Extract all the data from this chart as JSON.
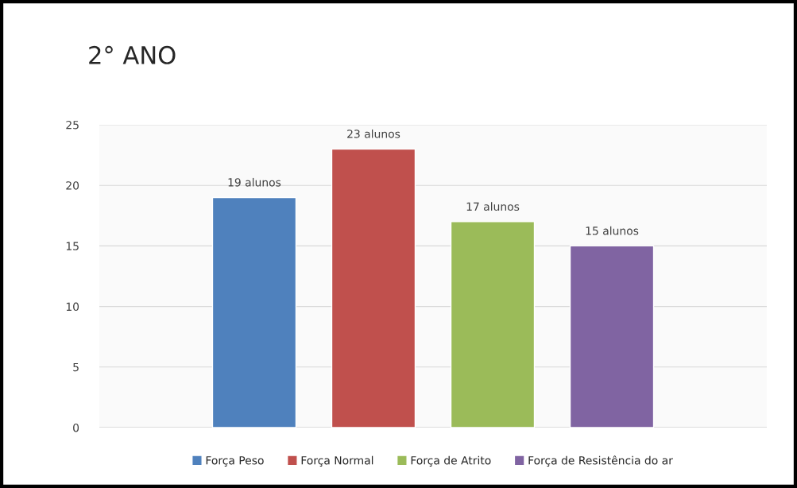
{
  "chart_data": {
    "type": "bar",
    "title": "2° ANO",
    "categories": [
      null
    ],
    "series": [
      {
        "name": "Força Peso",
        "color": "#4f81bd",
        "values": [
          19
        ],
        "value_labels": [
          "19 alunos"
        ]
      },
      {
        "name": "Força Normal",
        "color": "#c0504d",
        "values": [
          23
        ],
        "value_labels": [
          "23 alunos"
        ]
      },
      {
        "name": "Força de Atrito",
        "color": "#9bbb59",
        "values": [
          17
        ],
        "value_labels": [
          "17 alunos"
        ]
      },
      {
        "name": "Força de Resistência do ar",
        "color": "#8064a2",
        "values": [
          15
        ],
        "value_labels": [
          "15 alunos"
        ]
      }
    ],
    "ylim": [
      0,
      25
    ],
    "yticks": [
      0,
      5,
      10,
      15,
      20,
      25
    ],
    "grid": "y",
    "legend": "bottom"
  }
}
